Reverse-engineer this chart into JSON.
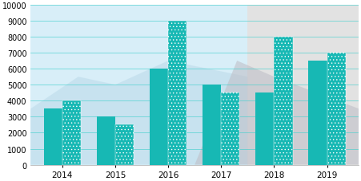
{
  "years": [
    "2014",
    "2015",
    "2016",
    "2017",
    "2018",
    "2019"
  ],
  "store_A": [
    3500,
    3000,
    6000,
    5000,
    4500,
    6500
  ],
  "store_B": [
    4000,
    2500,
    9000,
    4500,
    8000,
    7000
  ],
  "color_A": "#17b8b4",
  "color_B": "#17b8b4",
  "ylim": [
    0,
    10000
  ],
  "yticks": [
    0,
    1000,
    2000,
    3000,
    4000,
    5000,
    6000,
    7000,
    8000,
    9000,
    10000
  ],
  "bg_left": "#d8eef8",
  "bg_right": "#e2e2e2",
  "bar_width": 0.35,
  "grid_color": "#3ecfcc",
  "grid_alpha": 0.7,
  "mountain1_x": [
    -0.6,
    0.3,
    1.0,
    2.0,
    3.5,
    3.5,
    -0.6
  ],
  "mountain1_y": [
    3500,
    5500,
    5000,
    6500,
    5500,
    0,
    0
  ],
  "mountain1_color": "#b8d8e8",
  "mountain1_alpha": 0.5,
  "mountain2_x": [
    2.5,
    3.3,
    4.0,
    4.8,
    5.6,
    5.6,
    2.5
  ],
  "mountain2_y": [
    0,
    6500,
    5500,
    4500,
    3500,
    0,
    0
  ],
  "mountain2_color": "#c0c0c8",
  "mountain2_alpha": 0.6,
  "xlim_left": -0.6,
  "xlim_right": 5.6
}
